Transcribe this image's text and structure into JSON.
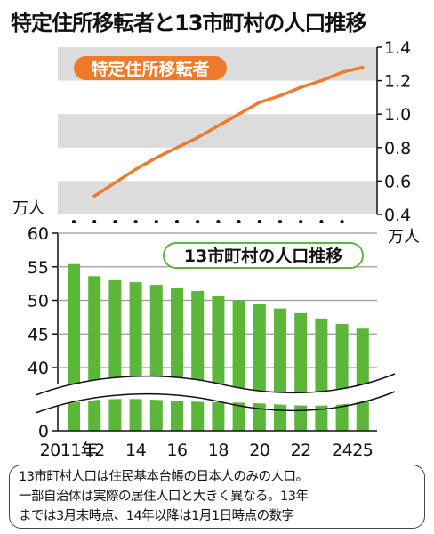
{
  "title": "特定住所移転者と13市町村の人口推移",
  "note": [
    "13市町村人口は住民基本台帳の日本人のみの人口。",
    "一部自治体は実際の居住人口と大きく異なる。13年",
    "までは3月末時点、14年以降は1月1日時点の数字"
  ],
  "chart_data": [
    {
      "type": "line",
      "title": "特定住所移転者",
      "unit": "万人",
      "x": [
        "2012",
        "2013",
        "2014",
        "2015",
        "2016",
        "2017",
        "2018",
        "2019",
        "2020",
        "2021",
        "2022",
        "2023",
        "2024",
        "2025"
      ],
      "series": [
        {
          "name": "特定住所移転者",
          "color": "#ee7a2c",
          "values": [
            0.51,
            0.59,
            0.67,
            0.74,
            0.8,
            0.86,
            0.93,
            1.0,
            1.07,
            1.11,
            1.16,
            1.2,
            1.25,
            1.28
          ]
        }
      ],
      "ylim": [
        0.4,
        1.4
      ],
      "yticks": [
        "0.4",
        "0.6",
        "0.8",
        "1.0",
        "1.2",
        "1.4"
      ],
      "grid": "alternating bands"
    },
    {
      "type": "bar",
      "title": "13市町村の人口推移",
      "unit": "万人",
      "categories": [
        "2011",
        "2012",
        "2013",
        "2014",
        "2015",
        "2016",
        "2017",
        "2018",
        "2019",
        "2020",
        "2021",
        "2022",
        "2023",
        "2024",
        "2025"
      ],
      "xtick_labels": [
        "2011年",
        "12",
        "",
        "14",
        "",
        "16",
        "",
        "18",
        "",
        "20",
        "",
        "22",
        "",
        "24",
        "25"
      ],
      "series": [
        {
          "name": "13市町村の人口推移",
          "color": "#5cb63a",
          "values": [
            55.4,
            53.6,
            53.0,
            52.7,
            52.3,
            51.8,
            51.4,
            50.6,
            50.0,
            49.4,
            48.8,
            48.1,
            47.3,
            46.5,
            45.8
          ]
        }
      ],
      "yticks": [
        "0",
        "40",
        "45",
        "50",
        "55",
        "60"
      ],
      "axis_break": "between 0 and 40",
      "grid": true
    }
  ]
}
